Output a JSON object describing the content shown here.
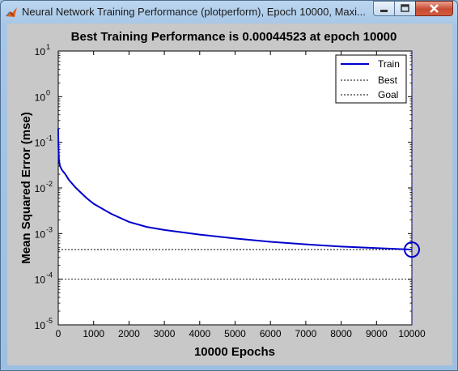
{
  "window": {
    "title": "Neural Network Training Performance (plotperform), Epoch 10000, Maxi..."
  },
  "icons": {
    "app": "matlab-icon",
    "minimize": "minimize-icon",
    "maximize": "maximize-icon",
    "close": "close-icon"
  },
  "chart_data": {
    "type": "line",
    "title": "Best Training Performance is 0.00044523 at epoch 10000",
    "xlabel": "10000 Epochs",
    "ylabel": "Mean Squared Error  (mse)",
    "xlim": [
      0,
      10000
    ],
    "ylim": [
      1e-05,
      10
    ],
    "yscale": "log",
    "grid": false,
    "legend_position": "top-right",
    "x_ticks": [
      0,
      1000,
      2000,
      3000,
      4000,
      5000,
      6000,
      7000,
      8000,
      9000,
      10000
    ],
    "x_tick_labels": [
      "0",
      "1000",
      "2000",
      "3000",
      "4000",
      "5000",
      "6000",
      "7000",
      "8000",
      "9000",
      "10000"
    ],
    "y_tick_exponents": [
      1,
      0,
      -1,
      -2,
      -3,
      -4,
      -5
    ],
    "y_tick_base": "10",
    "colors": {
      "train": "#0000cc",
      "best": "#000000",
      "goal": "#000000"
    },
    "series": [
      {
        "name": "Train",
        "style": "solid",
        "x": [
          0,
          5,
          20,
          50,
          100,
          200,
          300,
          500,
          800,
          1000,
          1500,
          2000,
          2500,
          3000,
          4000,
          5000,
          6000,
          7000,
          8000,
          9000,
          10000
        ],
        "y": [
          0.2,
          0.08,
          0.04,
          0.03,
          0.025,
          0.02,
          0.015,
          0.01,
          0.006,
          0.0045,
          0.0027,
          0.0018,
          0.0014,
          0.0012,
          0.00095,
          0.00078,
          0.00066,
          0.00058,
          0.00052,
          0.00048,
          0.00044523
        ]
      },
      {
        "name": "Best",
        "style": "dotted",
        "x": [
          0,
          10000
        ],
        "y": [
          0.00044523,
          0.00044523
        ]
      },
      {
        "name": "Goal",
        "style": "dotted",
        "x": [
          0,
          10000
        ],
        "y": [
          0.0001,
          0.0001
        ]
      }
    ],
    "best_point": {
      "x": 10000,
      "y": 0.00044523
    }
  }
}
